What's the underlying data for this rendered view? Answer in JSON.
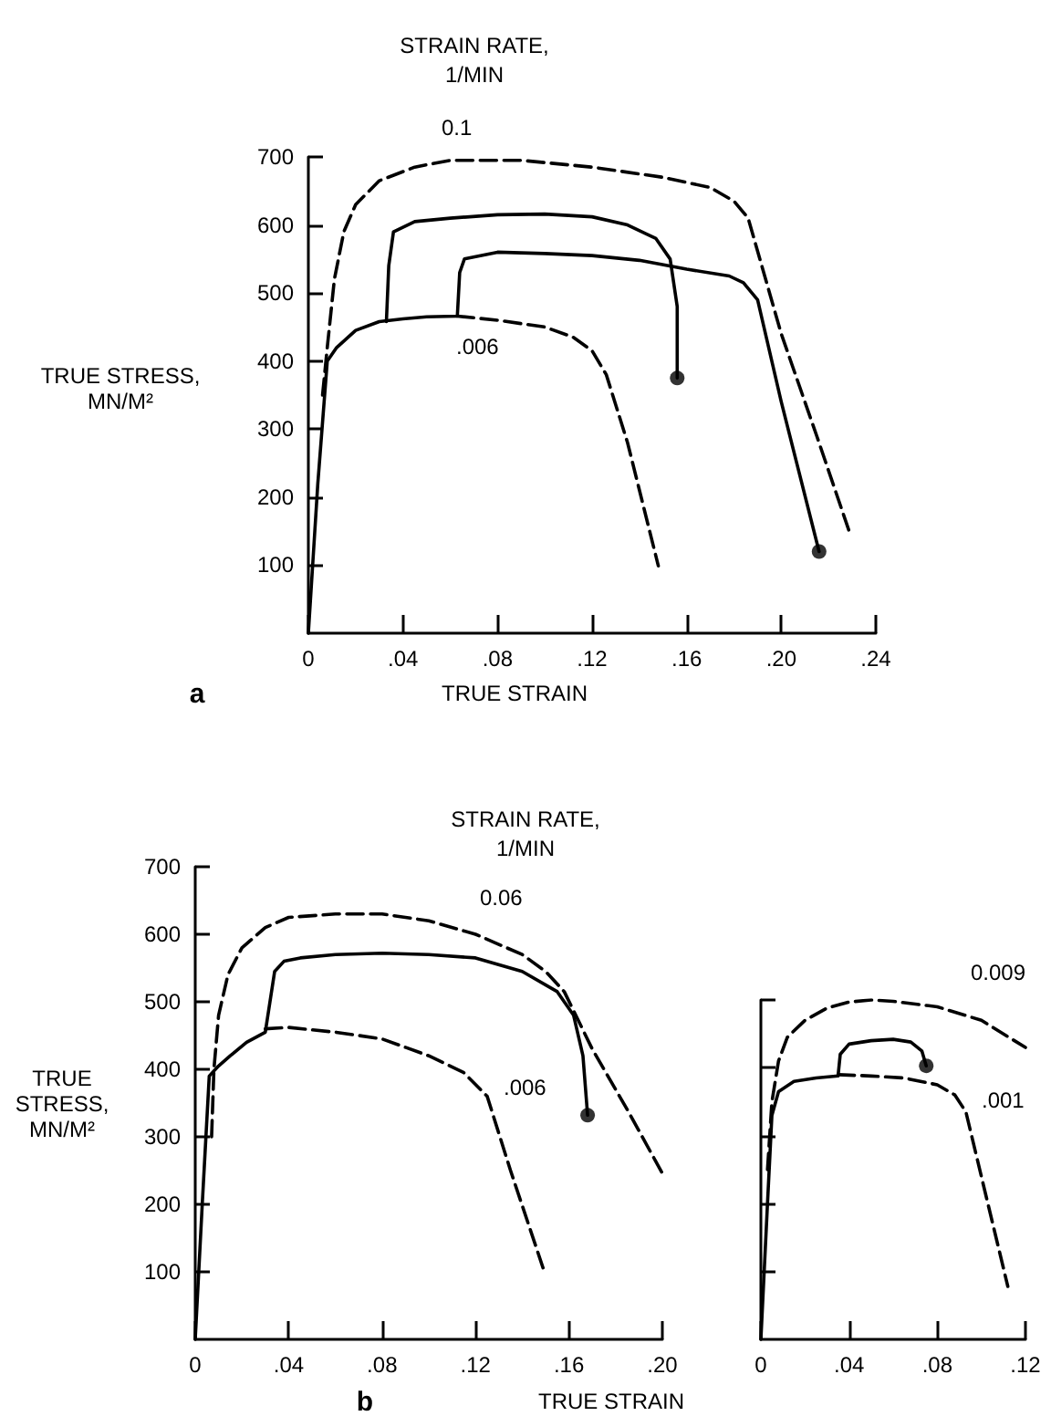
{
  "chart_data": [
    {
      "type": "line",
      "title": "STRAIN RATE,\n1/MIN",
      "xlabel": "TRUE STRAIN",
      "ylabel": "TRUE STRESS,\nMN/M²",
      "xlim": [
        0,
        0.24
      ],
      "ylim": [
        0,
        700
      ],
      "xticks": [
        {
          "value": 0,
          "label": "0"
        },
        {
          "value": 0.04,
          "label": ".04"
        },
        {
          "value": 0.08,
          "label": ".08"
        },
        {
          "value": 0.12,
          "label": ".12"
        },
        {
          "value": 0.16,
          "label": ".16"
        },
        {
          "value": 0.2,
          "label": ".20"
        },
        {
          "value": 0.24,
          "label": ".24"
        }
      ],
      "yticks": [
        100,
        200,
        300,
        400,
        500,
        600,
        700
      ],
      "series": [
        {
          "color": "#000000",
          "line_style": "dashed",
          "x": [
            0.006,
            0.008,
            0.011,
            0.015,
            0.02,
            0.03,
            0.045,
            0.06,
            0.09,
            0.12,
            0.15,
            0.17,
            0.18,
            0.186,
            0.2,
            0.215,
            0.229
          ],
          "values": [
            350,
            420,
            520,
            590,
            630,
            665,
            685,
            695,
            695,
            685,
            670,
            655,
            635,
            610,
            440,
            290,
            147
          ]
        },
        {
          "color": "#000000",
          "line_style": "solid",
          "x": [
            0,
            0.004,
            0.008,
            0.012,
            0.02,
            0.03,
            0.04,
            0.05,
            0.063,
            0.064,
            0.066,
            0.08,
            0.1,
            0.12,
            0.14,
            0.16,
            0.178,
            0.184,
            0.19,
            0.2,
            0.216
          ],
          "values": [
            0,
            220,
            400,
            420,
            445,
            458,
            462,
            465,
            466,
            530,
            550,
            560,
            558,
            555,
            548,
            535,
            525,
            515,
            490,
            340,
            120
          ]
        },
        {
          "color": "#000000",
          "line_style": "solid",
          "x": [
            0.033,
            0.034,
            0.036,
            0.045,
            0.06,
            0.08,
            0.1,
            0.12,
            0.135,
            0.147,
            0.153,
            0.156,
            0.156
          ],
          "values": [
            458,
            540,
            590,
            605,
            610,
            615,
            616,
            612,
            600,
            580,
            550,
            480,
            375
          ]
        },
        {
          "color": "#000000",
          "line_style": "dashed",
          "x": [
            0.063,
            0.08,
            0.1,
            0.112,
            0.12,
            0.126,
            0.135,
            0.148
          ],
          "values": [
            466,
            460,
            450,
            435,
            415,
            380,
            280,
            99
          ]
        },
        {
          "type": "scatter",
          "color": "#000000",
          "marker": "circle",
          "x": [
            0.156,
            0.216
          ],
          "values": [
            375,
            120
          ]
        }
      ],
      "annotations": [
        "0.1",
        ".006",
        "a"
      ]
    },
    {
      "type": "line",
      "title": "STRAIN RATE,\n1/MIN",
      "xlabel": "TRUE STRAIN",
      "ylabel": "TRUE\nSTRESS,\nMN/M²",
      "xlim": [
        0,
        0.2
      ],
      "ylim": [
        0,
        700
      ],
      "xticks": [
        {
          "value": 0,
          "label": "0"
        },
        {
          "value": 0.04,
          "label": ".04"
        },
        {
          "value": 0.08,
          "label": ".08"
        },
        {
          "value": 0.12,
          "label": ".12"
        },
        {
          "value": 0.16,
          "label": ".16"
        },
        {
          "value": 0.2,
          "label": ".20"
        }
      ],
      "yticks": [
        100,
        200,
        300,
        400,
        500,
        600,
        700
      ],
      "series": [
        {
          "color": "#000000",
          "line_style": "dashed",
          "x": [
            0.007,
            0.008,
            0.01,
            0.014,
            0.02,
            0.03,
            0.04,
            0.06,
            0.08,
            0.1,
            0.12,
            0.14,
            0.15,
            0.158,
            0.17,
            0.185,
            0.2
          ],
          "values": [
            300,
            400,
            480,
            540,
            580,
            610,
            625,
            630,
            630,
            620,
            600,
            570,
            545,
            515,
            430,
            340,
            246
          ]
        },
        {
          "color": "#000000",
          "line_style": "solid",
          "x": [
            0,
            0.003,
            0.006,
            0.01,
            0.015,
            0.022,
            0.03,
            0.032,
            0.034,
            0.038,
            0.045,
            0.06,
            0.08,
            0.1,
            0.12,
            0.14,
            0.155,
            0.162,
            0.166,
            0.168
          ],
          "values": [
            0,
            200,
            390,
            405,
            420,
            440,
            455,
            500,
            545,
            560,
            565,
            570,
            572,
            570,
            565,
            545,
            515,
            480,
            420,
            332
          ]
        },
        {
          "color": "#000000",
          "line_style": "dashed",
          "x": [
            0.03,
            0.04,
            0.06,
            0.08,
            0.1,
            0.115,
            0.125,
            0.135,
            0.149
          ],
          "values": [
            460,
            462,
            455,
            445,
            420,
            395,
            360,
            250,
            105
          ]
        },
        {
          "type": "scatter",
          "color": "#000000",
          "marker": "circle",
          "x": [
            0.168
          ],
          "values": [
            332
          ]
        }
      ],
      "annotations": [
        "0.06",
        ".006",
        "b"
      ]
    },
    {
      "type": "line",
      "xlim": [
        0,
        0.12
      ],
      "ylim": [
        0,
        500
      ],
      "tick_labels": "x",
      "xticks": [
        {
          "value": 0,
          "label": "0"
        },
        {
          "value": 0.04,
          "label": ".04"
        },
        {
          "value": 0.08,
          "label": ".08"
        },
        {
          "value": 0.12,
          "label": ".12"
        }
      ],
      "yticks": [
        100,
        200,
        300,
        400,
        500
      ],
      "series": [
        {
          "color": "#000000",
          "line_style": "dashed",
          "x": [
            0.003,
            0.005,
            0.008,
            0.012,
            0.02,
            0.03,
            0.04,
            0.05,
            0.06,
            0.08,
            0.1,
            0.12
          ],
          "values": [
            250,
            350,
            410,
            445,
            470,
            488,
            497,
            500,
            498,
            490,
            470,
            430
          ]
        },
        {
          "color": "#000000",
          "line_style": "solid",
          "x": [
            0,
            0.003,
            0.005,
            0.008,
            0.015,
            0.025,
            0.035,
            0.036,
            0.04,
            0.05,
            0.06,
            0.068,
            0.073,
            0.075
          ],
          "values": [
            0,
            200,
            330,
            365,
            380,
            385,
            388,
            420,
            435,
            440,
            442,
            438,
            425,
            403
          ]
        },
        {
          "color": "#000000",
          "line_style": "dashed",
          "x": [
            0.035,
            0.05,
            0.065,
            0.08,
            0.088,
            0.093,
            0.1,
            0.112
          ],
          "values": [
            390,
            388,
            385,
            375,
            360,
            335,
            240,
            78
          ]
        },
        {
          "type": "scatter",
          "color": "#000000",
          "marker": "circle",
          "x": [
            0.075
          ],
          "values": [
            403
          ]
        }
      ],
      "annotations": [
        "0.009",
        ".001"
      ]
    }
  ]
}
